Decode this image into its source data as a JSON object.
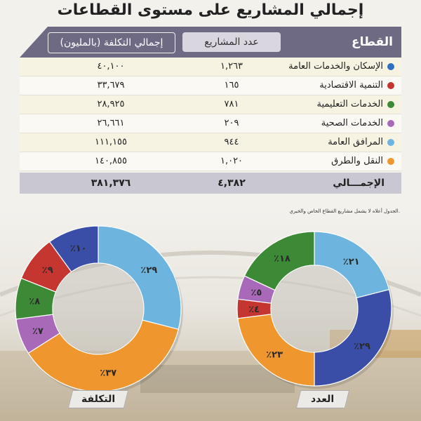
{
  "title": "إجمالي المشاريع على مستوى القطاعات",
  "table": {
    "headers": {
      "sector": "القطاع",
      "count": "عدد المشاريع",
      "cost": "إجمالي التكلفة (بالمليون)"
    },
    "rows": [
      {
        "name": "الإسكان والخدمات العامة",
        "count": "١,٢٦٣",
        "cost": "٤٠,١٠٠",
        "color": "#2f6fc0"
      },
      {
        "name": "التنمية الاقتصادية",
        "count": "١٦٥",
        "cost": "٣٣,٦٧٩",
        "color": "#c4362f"
      },
      {
        "name": "الخدمات التعليمية",
        "count": "٧٨١",
        "cost": "٢٨,٩٢٥",
        "color": "#3d8a36"
      },
      {
        "name": "الخدمات الصحية",
        "count": "٢٠٩",
        "cost": "٢٦,٦٦١",
        "color": "#a869b8"
      },
      {
        "name": "المرافق العامة",
        "count": "٩٤٤",
        "cost": "١١١,١٥٥",
        "color": "#6db5df"
      },
      {
        "name": "النقل والطرق",
        "count": "١,٠٢٠",
        "cost": "١٤٠,٨٥٥",
        "color": "#f0962e"
      }
    ],
    "total": {
      "name": "الإجمـــالي",
      "count": "٤,٣٨٢",
      "cost": "٣٨١,٣٧٦"
    },
    "note": "الجدول أعلاه لا يشمل مشاريع القطاع الخاص والخيري."
  },
  "chart_data": [
    {
      "type": "pie",
      "title": "التكلفة",
      "slices": [
        {
          "label": "٪٢٩",
          "value": 29,
          "color": "#6db5df"
        },
        {
          "label": "٪٣٧",
          "value": 37,
          "color": "#f0962e"
        },
        {
          "label": "٪٧",
          "value": 7,
          "color": "#a869b8"
        },
        {
          "label": "٪٨",
          "value": 8,
          "color": "#3d8a36"
        },
        {
          "label": "٪٩",
          "value": 9,
          "color": "#c4362f"
        },
        {
          "label": "٪١٠",
          "value": 10,
          "color": "#3a4ea8"
        }
      ]
    },
    {
      "type": "pie",
      "title": "العدد",
      "slices": [
        {
          "label": "٪٢١",
          "value": 21,
          "color": "#6db5df"
        },
        {
          "label": "٪٢٩",
          "value": 29,
          "color": "#3a4ea8"
        },
        {
          "label": "٪٢٣",
          "value": 23,
          "color": "#f0962e"
        },
        {
          "label": "٪٤",
          "value": 4,
          "color": "#c4362f"
        },
        {
          "label": "٪٥",
          "value": 5,
          "color": "#a869b8"
        },
        {
          "label": "٪١٨",
          "value": 18,
          "color": "#3d8a36"
        }
      ]
    }
  ]
}
